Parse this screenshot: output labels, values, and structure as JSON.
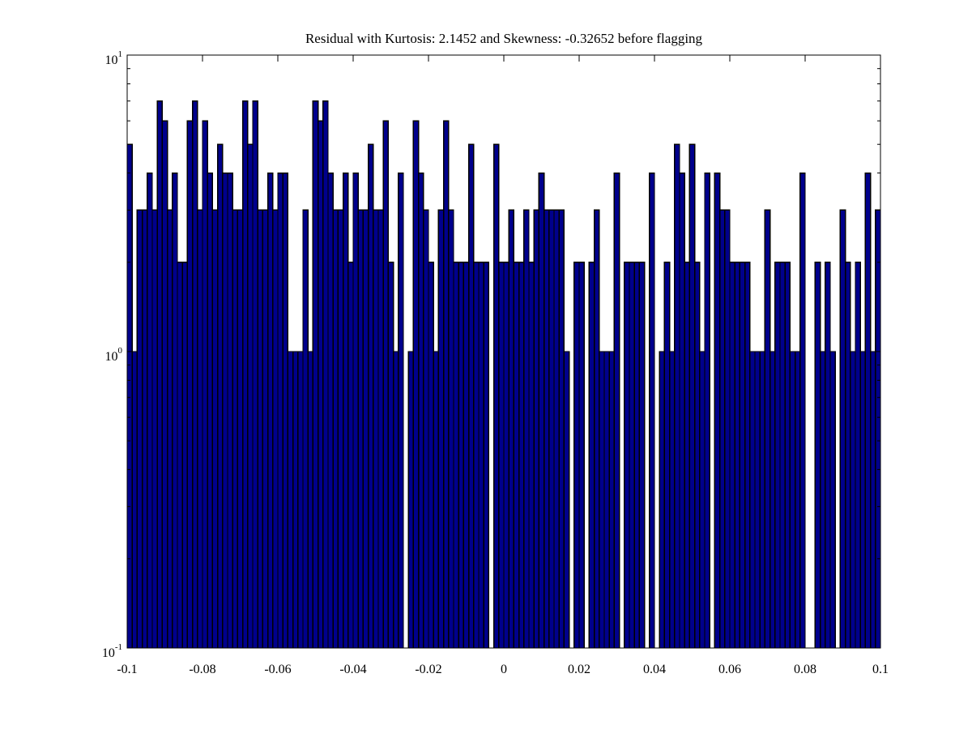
{
  "figure": {
    "background": "#ffffff"
  },
  "chart_data": {
    "type": "bar",
    "subtype": "histogram-semilogy",
    "title": "Residual with Kurtosis: 2.1452 and Skewness: -0.32652 before flagging",
    "xlabel": "",
    "ylabel": "",
    "x_range": [
      -0.1,
      0.1
    ],
    "y_scale": "log",
    "y_range_exponents": [
      -1,
      1
    ],
    "n_bins": 150,
    "bin_width": 0.0013333,
    "grid": false,
    "legend": null,
    "x_tick_values": [
      -0.1,
      -0.08,
      -0.06,
      -0.04,
      -0.02,
      0,
      0.02,
      0.04,
      0.06,
      0.08,
      0.1
    ],
    "x_tick_labels": [
      "-0.1",
      "-0.08",
      "-0.06",
      "-0.04",
      "-0.02",
      "0",
      "0.02",
      "0.04",
      "0.06",
      "0.08",
      "0.1"
    ],
    "y_ticks": [
      {
        "base": "10",
        "exp": "-1",
        "value_exponent": -1
      },
      {
        "base": "10",
        "exp": "0",
        "value_exponent": 0
      },
      {
        "base": "10",
        "exp": "1",
        "value_exponent": 1
      }
    ],
    "counts": [
      5,
      1,
      3,
      3,
      4,
      3,
      7,
      6,
      3,
      4,
      2,
      2,
      6,
      7,
      3,
      6,
      4,
      3,
      5,
      4,
      4,
      3,
      3,
      7,
      5,
      7,
      3,
      3,
      4,
      3,
      4,
      4,
      1,
      1,
      1,
      3,
      1,
      7,
      6,
      7,
      4,
      3,
      3,
      4,
      2,
      4,
      3,
      3,
      5,
      3,
      3,
      6,
      2,
      1,
      4,
      0,
      1,
      6,
      4,
      3,
      2,
      1,
      3,
      6,
      3,
      2,
      2,
      2,
      5,
      2,
      2,
      2,
      0,
      5,
      2,
      2,
      3,
      2,
      2,
      3,
      2,
      3,
      4,
      3,
      3,
      3,
      3,
      1,
      0,
      2,
      2,
      0,
      2,
      3,
      1,
      1,
      1,
      4,
      0,
      2,
      2,
      2,
      2,
      0,
      4,
      0,
      1,
      2,
      1,
      5,
      4,
      2,
      5,
      2,
      1,
      4,
      0,
      4,
      3,
      3,
      2,
      2,
      2,
      2,
      1,
      1,
      1,
      3,
      1,
      2,
      2,
      2,
      1,
      1,
      4,
      0,
      0,
      2,
      1,
      2,
      1,
      0,
      3,
      2,
      1,
      2,
      1,
      4,
      1,
      3
    ],
    "colors": {
      "bar_fill": "#00008C",
      "bar_edge": "#000000",
      "axis": "#000000",
      "text": "#000000",
      "background": "#ffffff"
    }
  }
}
